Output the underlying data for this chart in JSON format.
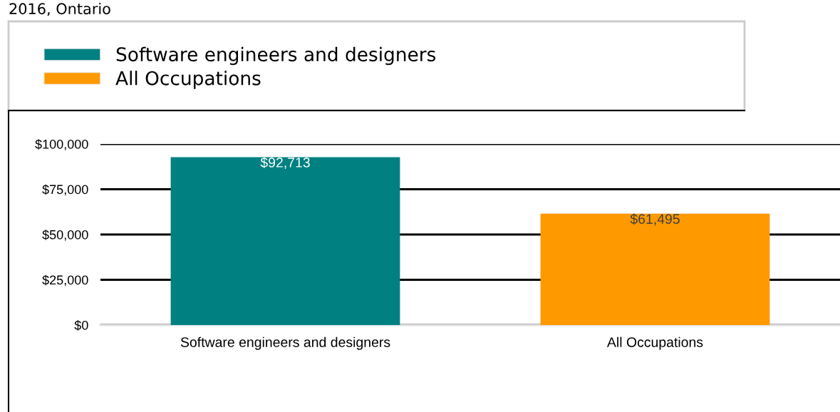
{
  "chart_data": {
    "type": "bar",
    "title": "2016, Ontario",
    "categories": [
      "Software engineers and designers",
      "All Occupations"
    ],
    "series": [
      {
        "name": "Software engineers and designers",
        "color": "#008080",
        "values": [
          92713,
          null
        ],
        "value_labels": [
          "$92,713",
          null
        ]
      },
      {
        "name": "All Occupations",
        "color": "#ff9900",
        "values": [
          null,
          61495
        ],
        "value_labels": [
          null,
          "$61,495"
        ]
      }
    ],
    "ylim": [
      0,
      100000
    ],
    "yticks": [
      {
        "value": 0,
        "label": "$0"
      },
      {
        "value": 25000,
        "label": "$25,000"
      },
      {
        "value": 50000,
        "label": "$50,000"
      },
      {
        "value": 75000,
        "label": "$75,000"
      },
      {
        "value": 100000,
        "label": "$100,000"
      }
    ],
    "grid": "y",
    "legend": "top"
  }
}
